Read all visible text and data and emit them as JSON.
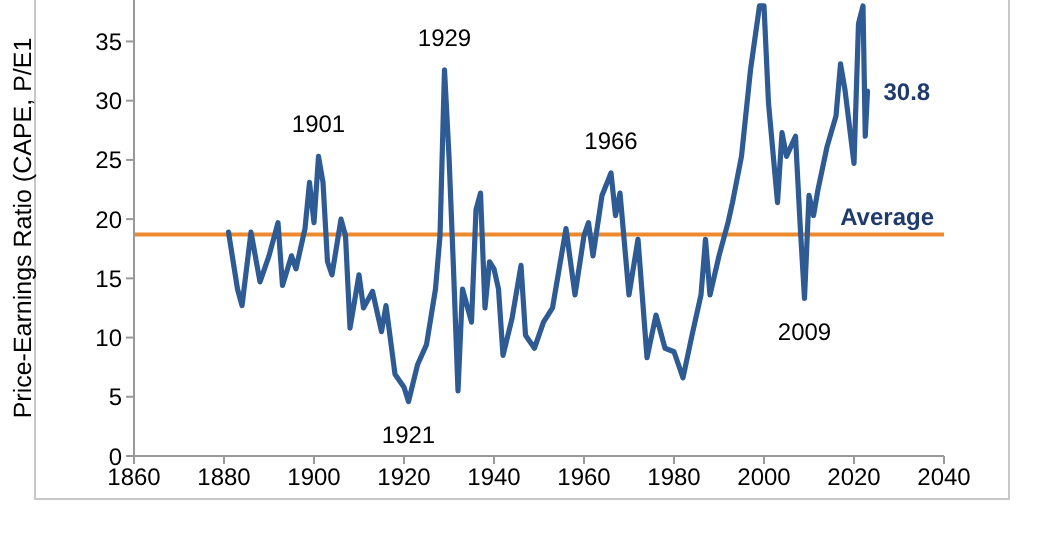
{
  "chart_data": {
    "type": "line",
    "ylabel": "Price-Earnings Ratio (CAPE, P/E1",
    "x": [
      1881,
      1883,
      1884,
      1886,
      1888,
      1890,
      1892,
      1893,
      1895,
      1896,
      1898,
      1899,
      1900,
      1901,
      1902,
      1903,
      1904,
      1906,
      1907,
      1908,
      1910,
      1911,
      1913,
      1915,
      1916,
      1918,
      1920,
      1921,
      1923,
      1925,
      1927,
      1928,
      1929,
      1930,
      1931,
      1932,
      1933,
      1935,
      1936,
      1937,
      1938,
      1939,
      1940,
      1941,
      1942,
      1944,
      1946,
      1947,
      1949,
      1951,
      1953,
      1956,
      1958,
      1960,
      1961,
      1962,
      1964,
      1966,
      1967,
      1968,
      1970,
      1972,
      1974,
      1976,
      1978,
      1980,
      1982,
      1984,
      1986,
      1987,
      1988,
      1990,
      1992,
      1993,
      1995,
      1997,
      1999,
      2000,
      2001,
      2003,
      2004,
      2005,
      2007,
      2008,
      2009,
      2010,
      2011,
      2012,
      2014,
      2016,
      2017,
      2018,
      2020,
      2021,
      2022,
      2022.5,
      2023
    ],
    "series": [
      {
        "color": "#2f5b95",
        "values": [
          18.9,
          14.1,
          12.7,
          18.9,
          14.7,
          16.9,
          19.7,
          14.4,
          16.9,
          15.8,
          19.2,
          23.1,
          19.7,
          25.3,
          23.1,
          16.4,
          15.3,
          20,
          18.6,
          10.8,
          15.3,
          12.5,
          13.9,
          10.5,
          12.7,
          6.9,
          5.8,
          4.6,
          7.7,
          9.4,
          14.1,
          18.6,
          32.6,
          25.3,
          15.8,
          5.5,
          14.1,
          11.3,
          20.8,
          22.2,
          12.5,
          16.4,
          15.8,
          14.1,
          8.5,
          11.6,
          16.1,
          10.2,
          9.1,
          11.3,
          12.5,
          19.2,
          13.6,
          18.6,
          19.7,
          16.9,
          22,
          23.9,
          20.3,
          22.2,
          13.6,
          18.3,
          8.3,
          11.9,
          9.1,
          8.8,
          6.6,
          10.2,
          13.6,
          18.3,
          13.6,
          16.9,
          19.7,
          21.4,
          25.3,
          32.6,
          38,
          38,
          29.8,
          21.4,
          27.3,
          25.3,
          27,
          19.7,
          13.3,
          22,
          20.3,
          22.5,
          26.1,
          28.7,
          33.1,
          30.9,
          24.7,
          36.5,
          38,
          27,
          30.8
        ]
      }
    ],
    "xlim": [
      1860,
      2040
    ],
    "xticks": [
      1860,
      1880,
      1900,
      1920,
      1940,
      1960,
      1980,
      2000,
      2020,
      2040
    ],
    "ylim": [
      0,
      38.5
    ],
    "yticks": [
      0,
      5,
      10,
      15,
      20,
      25,
      30,
      35
    ],
    "ref_lines": [
      {
        "axis": "y",
        "value": 18.7,
        "label": "Average",
        "color": "#ed8a2f"
      }
    ],
    "annotations": [
      {
        "text": "1901",
        "x": 1901,
        "y": 25.3
      },
      {
        "text": "1929",
        "x": 1929,
        "y": 32.6
      },
      {
        "text": "1921",
        "x": 1921,
        "y": 4.6
      },
      {
        "text": "1966",
        "x": 1966,
        "y": 23.9
      },
      {
        "text": "2009",
        "x": 2009,
        "y": 13.3
      },
      {
        "text": "30.8",
        "x": 2023,
        "y": 30.8
      }
    ],
    "grid": false,
    "legend": false,
    "marker": "none",
    "line_style": "solid"
  }
}
